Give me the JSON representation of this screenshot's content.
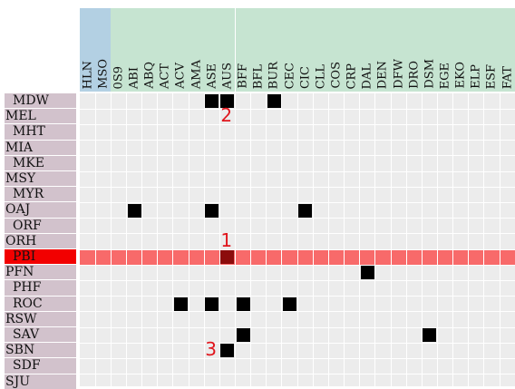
{
  "colors": {
    "group_header_a": "#b3d0e3",
    "group_header_b": "#c6e4d1",
    "row_header": "#d2c2cc",
    "row_header_selected": "#f20000",
    "cell_background": "#ececec",
    "grid_line": "#ffffff",
    "highlight_band": "#f86a6a",
    "marker": "#000000",
    "marker_on_highlight": "#8c0c0c",
    "annotation": "#e0161d"
  },
  "columns": [
    {
      "code": "HLN",
      "group": "a"
    },
    {
      "code": "MSO",
      "group": "a"
    },
    {
      "code": "0S9",
      "group": "b"
    },
    {
      "code": "ABI",
      "group": "b"
    },
    {
      "code": "ABQ",
      "group": "b"
    },
    {
      "code": "ACT",
      "group": "b"
    },
    {
      "code": "ACV",
      "group": "b"
    },
    {
      "code": "AMA",
      "group": "b"
    },
    {
      "code": "ASE",
      "group": "b"
    },
    {
      "code": "AUS",
      "group": "b"
    },
    {
      "code": "BFF",
      "group": "b"
    },
    {
      "code": "BFL",
      "group": "b"
    },
    {
      "code": "BUR",
      "group": "b"
    },
    {
      "code": "CEC",
      "group": "b"
    },
    {
      "code": "CIC",
      "group": "b"
    },
    {
      "code": "CLL",
      "group": "b"
    },
    {
      "code": "COS",
      "group": "b"
    },
    {
      "code": "CRP",
      "group": "b"
    },
    {
      "code": "DAL",
      "group": "b"
    },
    {
      "code": "DEN",
      "group": "b"
    },
    {
      "code": "DFW",
      "group": "b"
    },
    {
      "code": "DRO",
      "group": "b"
    },
    {
      "code": "DSM",
      "group": "b"
    },
    {
      "code": "EGE",
      "group": "b"
    },
    {
      "code": "EKO",
      "group": "b"
    },
    {
      "code": "ELP",
      "group": "b"
    },
    {
      "code": "ESF",
      "group": "b"
    },
    {
      "code": "FAT",
      "group": "b"
    }
  ],
  "rows": [
    {
      "code": "MDW",
      "indented": true,
      "selected": false
    },
    {
      "code": "MEL",
      "indented": false,
      "selected": false
    },
    {
      "code": "MHT",
      "indented": true,
      "selected": false
    },
    {
      "code": "MIA",
      "indented": false,
      "selected": false
    },
    {
      "code": "MKE",
      "indented": true,
      "selected": false
    },
    {
      "code": "MSY",
      "indented": false,
      "selected": false
    },
    {
      "code": "MYR",
      "indented": true,
      "selected": false
    },
    {
      "code": "OAJ",
      "indented": false,
      "selected": false
    },
    {
      "code": "ORF",
      "indented": true,
      "selected": false
    },
    {
      "code": "ORH",
      "indented": false,
      "selected": false
    },
    {
      "code": "PBI",
      "indented": true,
      "selected": true
    },
    {
      "code": "PFN",
      "indented": false,
      "selected": false
    },
    {
      "code": "PHF",
      "indented": true,
      "selected": false
    },
    {
      "code": "ROC",
      "indented": true,
      "selected": false
    },
    {
      "code": "RSW",
      "indented": false,
      "selected": false
    },
    {
      "code": "SAV",
      "indented": true,
      "selected": false
    },
    {
      "code": "SBN",
      "indented": false,
      "selected": false
    },
    {
      "code": "SDF",
      "indented": true,
      "selected": false
    },
    {
      "code": "SJU",
      "indented": false,
      "selected": false
    }
  ],
  "highlighted_row": "PBI",
  "filled_cells": [
    {
      "row": "MDW",
      "col": "ASE"
    },
    {
      "row": "MDW",
      "col": "AUS"
    },
    {
      "row": "MDW",
      "col": "BUR"
    },
    {
      "row": "OAJ",
      "col": "ABI"
    },
    {
      "row": "OAJ",
      "col": "ASE"
    },
    {
      "row": "OAJ",
      "col": "CIC"
    },
    {
      "row": "PBI",
      "col": "AUS"
    },
    {
      "row": "PFN",
      "col": "DAL"
    },
    {
      "row": "ROC",
      "col": "ACV"
    },
    {
      "row": "ROC",
      "col": "ASE"
    },
    {
      "row": "ROC",
      "col": "BFF"
    },
    {
      "row": "ROC",
      "col": "CEC"
    },
    {
      "row": "SAV",
      "col": "BFF"
    },
    {
      "row": "SAV",
      "col": "DSM"
    },
    {
      "row": "SBN",
      "col": "AUS"
    }
  ],
  "annotations": [
    {
      "text": "1",
      "row": "ORH",
      "col": "AUS"
    },
    {
      "text": "2",
      "row": "MEL",
      "col": "AUS"
    },
    {
      "text": "3",
      "row": "SBN",
      "col": "ASE"
    }
  ]
}
